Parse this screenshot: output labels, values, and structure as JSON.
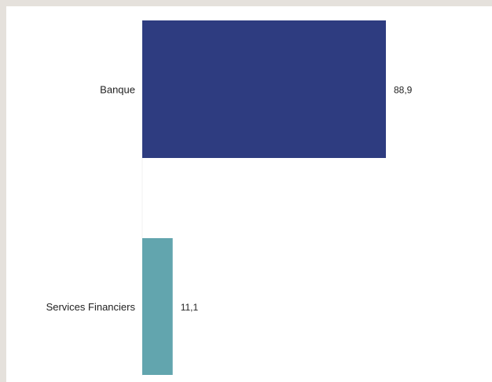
{
  "chart_data": {
    "type": "bar",
    "orientation": "horizontal",
    "title": "",
    "xlabel": "",
    "ylabel": "",
    "categories": [
      "Banque",
      "Services Financiers"
    ],
    "values": [
      88.9,
      11.1
    ],
    "value_labels": [
      "88,9",
      "11,1"
    ],
    "colors": [
      "#2e3c80",
      "#62a5ae"
    ],
    "xlim": [
      0,
      100
    ],
    "grid": false,
    "legend": "none"
  }
}
